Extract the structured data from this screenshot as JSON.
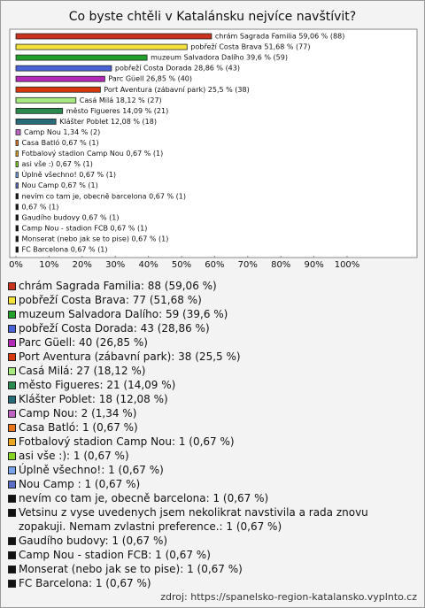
{
  "chart_data": {
    "type": "bar",
    "orientation": "horizontal",
    "title": "Co byste chtěli v Katalánsku nejvíce navštívit?",
    "values": [
      59.06,
      51.68,
      39.6,
      28.86,
      26.85,
      25.5,
      18.12,
      14.09,
      12.08,
      1.34,
      0.67,
      0.67,
      0.67,
      0.67,
      0.67,
      0.67,
      0.67,
      0.67,
      0.67,
      0.67,
      0.67
    ],
    "value_labels": [
      "chrám Sagrada Familia 59,06 % (88)",
      "pobřeží Costa Brava 51,68 % (77)",
      "muzeum Salvadora Dalího 39,6 % (59)",
      "pobřeží Costa Dorada 28,86 % (43)",
      "Parc Güell 26,85 % (40)",
      "Port Aventura (zábavní park) 25,5 % (38)",
      "Casá Milá 18,12 % (27)",
      "město Figueres 14,09 % (21)",
      "Klášter Poblet 12,08 % (18)",
      "Camp Nou 1,34 % (2)",
      "Casa Batló 0,67 % (1)",
      "Fotbalový stadion Camp Nou 0,67 % (1)",
      "asi vše :) 0,67 % (1)",
      "Úplně všechno! 0,67 % (1)",
      "Nou Camp  0,67 % (1)",
      "nevím co tam je, obecně barcelona 0,67 % (1)",
      "0,67 % (1)",
      "Gaudího budovy 0,67 % (1)",
      "Camp Nou - stadion FCB 0,67 % (1)",
      "Monserat (nebo jak se to pise) 0,67 % (1)",
      "FC Barcelona 0,67 % (1)"
    ],
    "legend_labels": [
      "chrám Sagrada Familia: 88 (59,06 %)",
      "pobřeží Costa Brava: 77 (51,68 %)",
      "muzeum Salvadora Dalího: 59 (39,6 %)",
      "pobřeží Costa Dorada: 43 (28,86 %)",
      "Parc Güell: 40 (26,85 %)",
      "Port Aventura (zábavní park): 38 (25,5 %)",
      "Casá Milá: 27 (18,12 %)",
      "město Figueres: 21 (14,09 %)",
      "Klášter Poblet: 18 (12,08 %)",
      "Camp Nou: 2 (1,34 %)",
      "Casa Batló: 1 (0,67 %)",
      "Fotbalový stadion Camp Nou: 1 (0,67 %)",
      "asi vše :): 1 (0,67 %)",
      "Úplně všechno!: 1 (0,67 %)",
      "Nou Camp : 1 (0,67 %)",
      "nevím co tam je, obecně barcelona: 1 (0,67 %)",
      "Vetsinu z vyse uvedenych jsem nekolikrat navstivila a rada znovu zopakuji. Nemam zvlastni preference.: 1 (0,67 %)",
      "Gaudího budovy: 1 (0,67 %)",
      "Camp Nou - stadion FCB: 1 (0,67 %)",
      "Monserat (nebo jak se to pise): 1 (0,67 %)",
      "FC Barcelona: 1 (0,67 %)"
    ],
    "colors": [
      "#c8321e",
      "#f2e23a",
      "#22a12a",
      "#4a62d8",
      "#b42ab8",
      "#d8380e",
      "#a6ea80",
      "#2a8a4e",
      "#276a78",
      "#c064c4",
      "#e8741e",
      "#eca622",
      "#86d424",
      "#79a4ec",
      "#5a6ec8",
      "#111111",
      "#111111",
      "#111111",
      "#111111",
      "#111111",
      "#111111"
    ],
    "xlim": [
      0,
      100
    ],
    "xticks": [
      {
        "value": 0,
        "label": "0%"
      },
      {
        "value": 10,
        "label": "10%"
      },
      {
        "value": 20,
        "label": "20%"
      },
      {
        "value": 30,
        "label": "30%"
      },
      {
        "value": 40,
        "label": "40%"
      },
      {
        "value": 50,
        "label": "50%"
      },
      {
        "value": 60,
        "label": "60%"
      },
      {
        "value": 70,
        "label": "70%"
      },
      {
        "value": 80,
        "label": "80%"
      },
      {
        "value": 90,
        "label": "90%"
      },
      {
        "value": 100,
        "label": "100%"
      }
    ],
    "source": "zdroj: https://spanelsko-region-katalansko.vyplnto.cz"
  }
}
